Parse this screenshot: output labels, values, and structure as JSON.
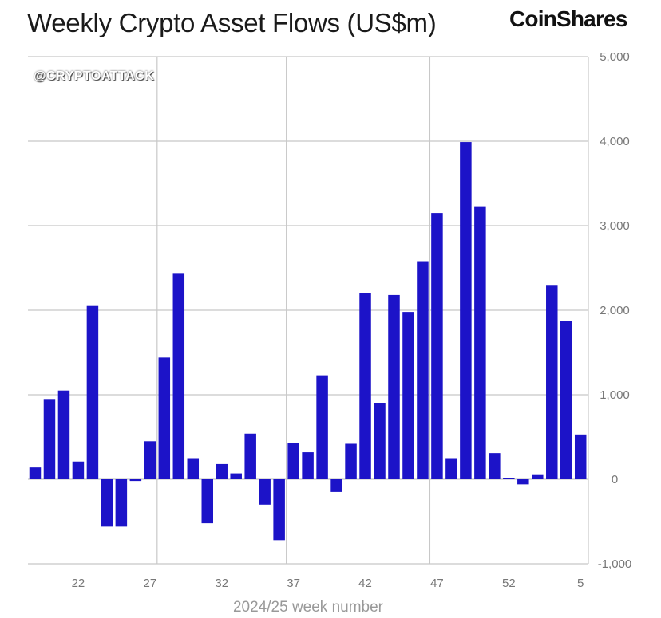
{
  "header": {
    "title": "Weekly Crypto Asset Flows (US$m)",
    "brand": "CoinShares",
    "watermark": "@CRYPTOATTACK"
  },
  "chart_data": {
    "type": "bar",
    "title": "Weekly Crypto Asset Flows (US$m)",
    "xlabel": "2024/25 week number",
    "ylabel": "",
    "ylim": [
      -1000,
      5000
    ],
    "yticks": [
      5000,
      4000,
      3000,
      2000,
      1000,
      0,
      -1000
    ],
    "ytick_labels": [
      "5,000",
      "4,000",
      "3,000",
      "2,000",
      "1,000",
      "0",
      "-1,000"
    ],
    "y_axis_side": "right",
    "grid": true,
    "bar_color": "#1c13c8",
    "categories": [
      "19",
      "20",
      "21",
      "22",
      "23",
      "24",
      "25",
      "26",
      "27",
      "28",
      "29",
      "30",
      "31",
      "32",
      "33",
      "34",
      "35",
      "36",
      "37",
      "38",
      "39",
      "40",
      "41",
      "42",
      "43",
      "44",
      "45",
      "46",
      "47",
      "48",
      "49",
      "50",
      "51",
      "52",
      "1",
      "2",
      "3",
      "4",
      "5"
    ],
    "values": [
      140,
      950,
      1050,
      210,
      2050,
      -560,
      -560,
      -20,
      450,
      1440,
      2440,
      250,
      -520,
      180,
      70,
      540,
      -300,
      -720,
      430,
      320,
      1230,
      -150,
      420,
      2200,
      900,
      2180,
      1980,
      2580,
      3150,
      250,
      3990,
      3230,
      310,
      10,
      -60,
      50,
      2290,
      1870,
      530
    ],
    "xtick_labels": [
      "22",
      "27",
      "32",
      "37",
      "42",
      "47",
      "52",
      "5"
    ]
  }
}
